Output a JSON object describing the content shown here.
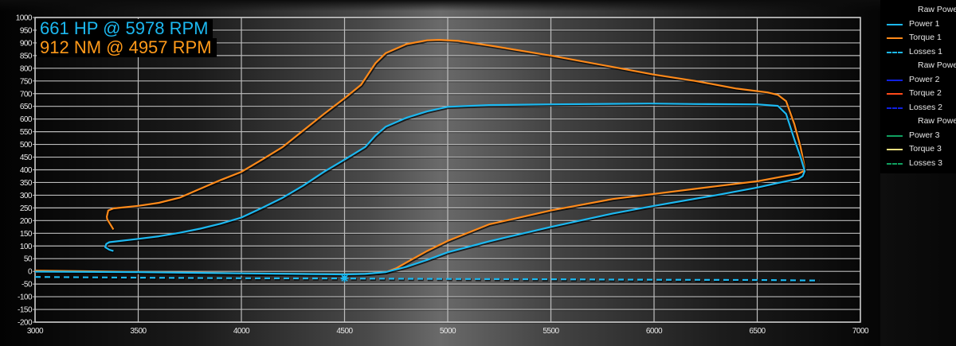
{
  "annotations": {
    "power_peak": "661 HP @ 5978 RPM",
    "torque_peak": "912 NM @ 4957 RPM"
  },
  "legend": [
    {
      "label": "Raw Powe...",
      "type": "header",
      "color": null,
      "dashed": false
    },
    {
      "label": "Power 1",
      "type": "line",
      "color": "#1cb8f0",
      "dashed": false
    },
    {
      "label": "Torque 1",
      "type": "line",
      "color": "#ff8a1a",
      "dashed": false
    },
    {
      "label": "Losses 1",
      "type": "line",
      "color": "#1cb8f0",
      "dashed": true
    },
    {
      "label": "Raw Powe...",
      "type": "header",
      "color": null,
      "dashed": false
    },
    {
      "label": "Power 2",
      "type": "line",
      "color": "#1020e0",
      "dashed": false
    },
    {
      "label": "Torque 2",
      "type": "line",
      "color": "#ff4a1a",
      "dashed": false
    },
    {
      "label": "Losses 2",
      "type": "line",
      "color": "#1020e0",
      "dashed": true
    },
    {
      "label": "Raw Powe...",
      "type": "header",
      "color": null,
      "dashed": false
    },
    {
      "label": "Power 3",
      "type": "line",
      "color": "#10a060",
      "dashed": false
    },
    {
      "label": "Torque 3",
      "type": "line",
      "color": "#f0e080",
      "dashed": false
    },
    {
      "label": "Losses 3",
      "type": "line",
      "color": "#10a060",
      "dashed": true
    }
  ],
  "chart_data": {
    "type": "line",
    "title": "",
    "xlabel": "",
    "ylabel": "",
    "xlim": [
      3000,
      7000
    ],
    "ylim": [
      -200,
      1000
    ],
    "grid": true,
    "legend_position": "right",
    "x_ticks": [
      3000,
      3500,
      4000,
      4500,
      5000,
      5500,
      6000,
      6500,
      7000
    ],
    "y_ticks": [
      -200,
      -150,
      -100,
      -50,
      0,
      50,
      100,
      150,
      200,
      250,
      300,
      350,
      400,
      450,
      500,
      550,
      600,
      650,
      700,
      750,
      800,
      850,
      900,
      950,
      1000
    ],
    "annotations": [
      "661 HP @ 5978 RPM",
      "912 NM @ 4957 RPM"
    ],
    "series": [
      {
        "name": "Torque 1",
        "color": "#ff8a1a",
        "dashed": false,
        "points": [
          [
            3380,
            165
          ],
          [
            3365,
            185
          ],
          [
            3350,
            205
          ],
          [
            3348,
            215
          ],
          [
            3355,
            240
          ],
          [
            3380,
            248
          ],
          [
            3500,
            258
          ],
          [
            3600,
            270
          ],
          [
            3700,
            290
          ],
          [
            3800,
            325
          ],
          [
            3900,
            360
          ],
          [
            4000,
            392
          ],
          [
            4100,
            440
          ],
          [
            4200,
            490
          ],
          [
            4300,
            555
          ],
          [
            4400,
            620
          ],
          [
            4500,
            682
          ],
          [
            4580,
            735
          ],
          [
            4650,
            820
          ],
          [
            4700,
            860
          ],
          [
            4800,
            895
          ],
          [
            4900,
            910
          ],
          [
            4957,
            912
          ],
          [
            5050,
            908
          ],
          [
            5200,
            890
          ],
          [
            5500,
            850
          ],
          [
            5800,
            805
          ],
          [
            6000,
            775
          ],
          [
            6200,
            750
          ],
          [
            6400,
            720
          ],
          [
            6550,
            705
          ],
          [
            6600,
            695
          ],
          [
            6640,
            670
          ],
          [
            6680,
            580
          ],
          [
            6710,
            490
          ],
          [
            6730,
            410
          ],
          [
            6725,
            395
          ],
          [
            6700,
            385
          ],
          [
            6600,
            370
          ],
          [
            6500,
            355
          ],
          [
            6300,
            335
          ],
          [
            6000,
            305
          ],
          [
            5800,
            285
          ],
          [
            5500,
            240
          ],
          [
            5200,
            185
          ],
          [
            5000,
            120
          ],
          [
            4900,
            80
          ],
          [
            4800,
            35
          ],
          [
            4750,
            12
          ],
          [
            4700,
            -3
          ],
          [
            4600,
            -10
          ],
          [
            4500,
            -12
          ],
          [
            4000,
            -8
          ],
          [
            3500,
            -2
          ],
          [
            3000,
            3
          ]
        ]
      },
      {
        "name": "Power 1",
        "color": "#1cb8f0",
        "dashed": false,
        "points": [
          [
            3380,
            80
          ],
          [
            3360,
            85
          ],
          [
            3340,
            95
          ],
          [
            3345,
            108
          ],
          [
            3360,
            115
          ],
          [
            3500,
            128
          ],
          [
            3600,
            138
          ],
          [
            3700,
            152
          ],
          [
            3800,
            168
          ],
          [
            3900,
            188
          ],
          [
            4000,
            212
          ],
          [
            4100,
            250
          ],
          [
            4200,
            290
          ],
          [
            4300,
            338
          ],
          [
            4400,
            392
          ],
          [
            4500,
            440
          ],
          [
            4600,
            490
          ],
          [
            4650,
            535
          ],
          [
            4700,
            570
          ],
          [
            4800,
            605
          ],
          [
            4900,
            630
          ],
          [
            5000,
            648
          ],
          [
            5200,
            655
          ],
          [
            5500,
            658
          ],
          [
            5978,
            661
          ],
          [
            6200,
            659
          ],
          [
            6500,
            658
          ],
          [
            6600,
            652
          ],
          [
            6640,
            620
          ],
          [
            6680,
            520
          ],
          [
            6710,
            450
          ],
          [
            6730,
            395
          ],
          [
            6720,
            375
          ],
          [
            6700,
            365
          ],
          [
            6600,
            348
          ],
          [
            6500,
            330
          ],
          [
            6300,
            300
          ],
          [
            6000,
            258
          ],
          [
            5800,
            228
          ],
          [
            5500,
            175
          ],
          [
            5200,
            118
          ],
          [
            5000,
            75
          ],
          [
            4900,
            45
          ],
          [
            4800,
            18
          ],
          [
            4700,
            -3
          ],
          [
            4600,
            -10
          ],
          [
            4500,
            -12
          ],
          [
            4000,
            -8
          ],
          [
            3500,
            -3
          ],
          [
            3000,
            -1
          ]
        ]
      },
      {
        "name": "Losses 1",
        "color": "#1cb8f0",
        "dashed": true,
        "points": [
          [
            3000,
            -22
          ],
          [
            3500,
            -25
          ],
          [
            4000,
            -27
          ],
          [
            4500,
            -28
          ],
          [
            5000,
            -30
          ],
          [
            5500,
            -31
          ],
          [
            6000,
            -33
          ],
          [
            6500,
            -34
          ],
          [
            6800,
            -36
          ]
        ],
        "marker": [
          4500,
          -27
        ]
      }
    ]
  }
}
